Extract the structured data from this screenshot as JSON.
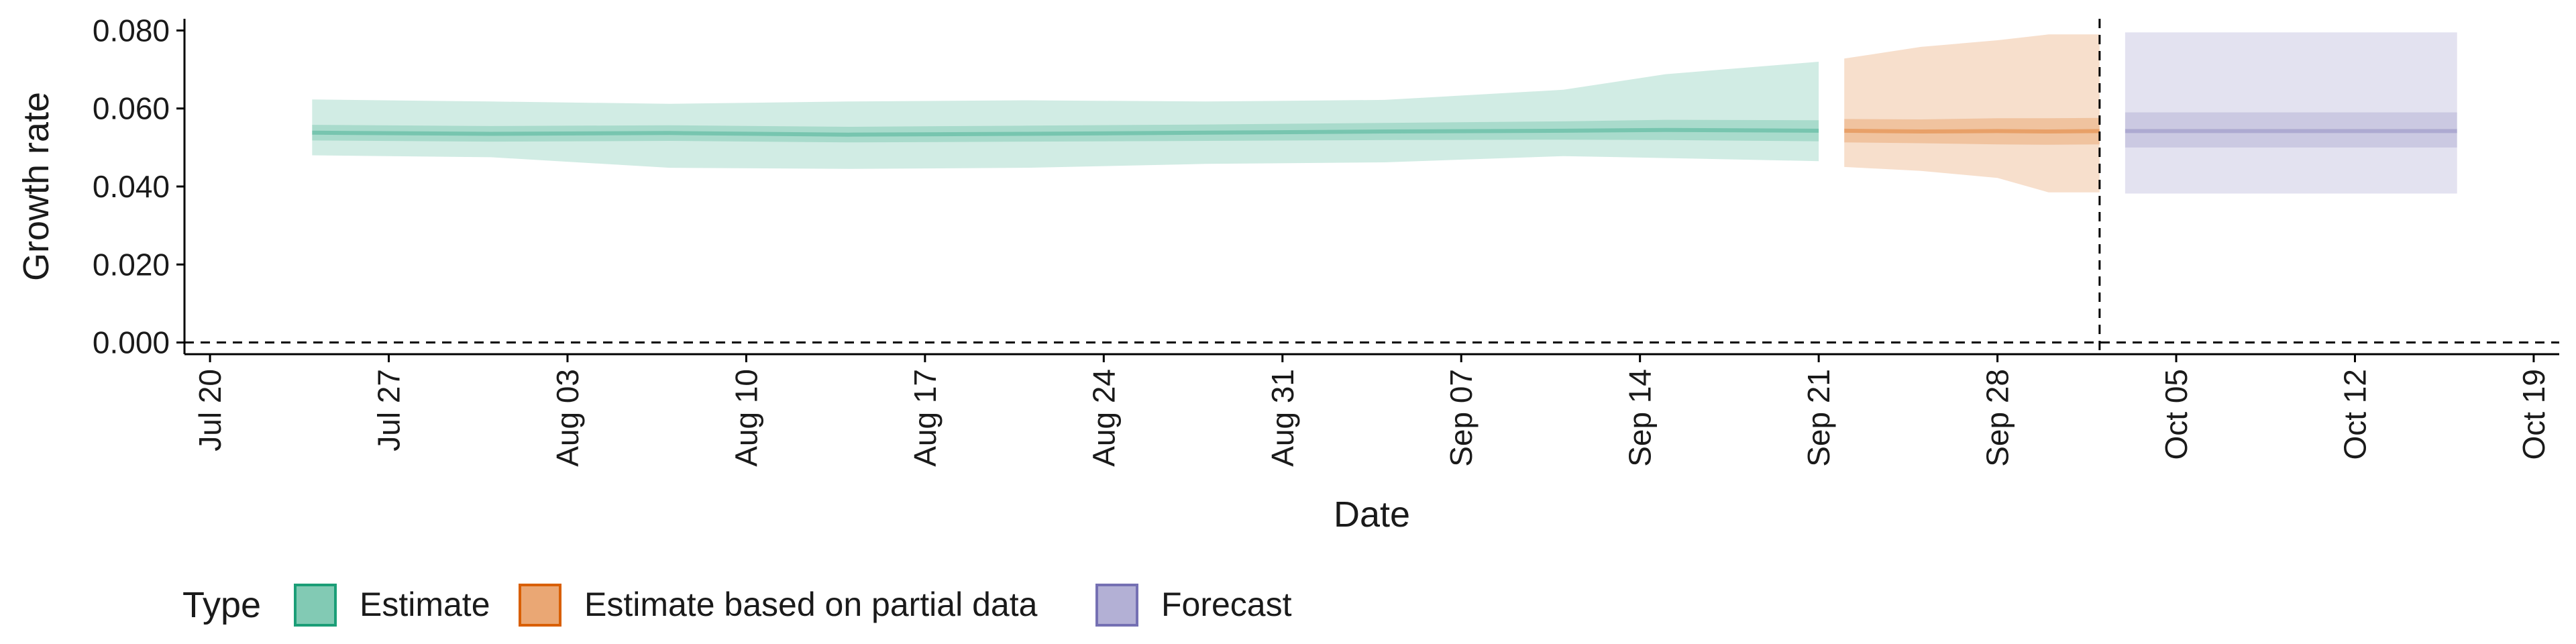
{
  "chart_data": {
    "type": "area",
    "title": "",
    "xlabel": "Date",
    "ylabel": "Growth rate",
    "x_type": "date",
    "xlim": [
      "2020-07-19",
      "2020-10-20"
    ],
    "ylim": [
      -0.003,
      0.083
    ],
    "x_ticks": [
      {
        "date": "2020-07-20",
        "label": "Jul 20"
      },
      {
        "date": "2020-07-27",
        "label": "Jul 27"
      },
      {
        "date": "2020-08-03",
        "label": "Aug 03"
      },
      {
        "date": "2020-08-10",
        "label": "Aug 10"
      },
      {
        "date": "2020-08-17",
        "label": "Aug 17"
      },
      {
        "date": "2020-08-24",
        "label": "Aug 24"
      },
      {
        "date": "2020-08-31",
        "label": "Aug 31"
      },
      {
        "date": "2020-09-07",
        "label": "Sep 07"
      },
      {
        "date": "2020-09-14",
        "label": "Sep 14"
      },
      {
        "date": "2020-09-21",
        "label": "Sep 21"
      },
      {
        "date": "2020-09-28",
        "label": "Sep 28"
      },
      {
        "date": "2020-10-05",
        "label": "Oct 05"
      },
      {
        "date": "2020-10-12",
        "label": "Oct 12"
      },
      {
        "date": "2020-10-19",
        "label": "Oct 19"
      }
    ],
    "y_ticks": [
      {
        "value": 0.0,
        "label": "0.000"
      },
      {
        "value": 0.02,
        "label": "0.020"
      },
      {
        "value": 0.04,
        "label": "0.040"
      },
      {
        "value": 0.06,
        "label": "0.060"
      },
      {
        "value": 0.08,
        "label": "0.080"
      }
    ],
    "hline": 0,
    "vline_date": "2020-10-02",
    "grid": false,
    "legend": {
      "title": "Type",
      "position": "bottom-left"
    },
    "series": [
      {
        "name": "Estimate",
        "color": "#1b9e77",
        "points": [
          {
            "x": "2020-07-24",
            "median": 0.0538,
            "lower_50": 0.0518,
            "upper_50": 0.0558,
            "lower_90": 0.048,
            "upper_90": 0.0623
          },
          {
            "x": "2020-07-31",
            "median": 0.0535,
            "lower_50": 0.0515,
            "upper_50": 0.0555,
            "lower_90": 0.0475,
            "upper_90": 0.0618
          },
          {
            "x": "2020-08-07",
            "median": 0.0537,
            "lower_50": 0.0517,
            "upper_50": 0.0557,
            "lower_90": 0.0448,
            "upper_90": 0.0612
          },
          {
            "x": "2020-08-14",
            "median": 0.0533,
            "lower_50": 0.0513,
            "upper_50": 0.0553,
            "lower_90": 0.0445,
            "upper_90": 0.0618
          },
          {
            "x": "2020-08-21",
            "median": 0.0535,
            "lower_50": 0.0515,
            "upper_50": 0.0556,
            "lower_90": 0.0448,
            "upper_90": 0.0621
          },
          {
            "x": "2020-08-28",
            "median": 0.0538,
            "lower_50": 0.0517,
            "upper_50": 0.0559,
            "lower_90": 0.0458,
            "upper_90": 0.0618
          },
          {
            "x": "2020-09-04",
            "median": 0.0541,
            "lower_50": 0.0519,
            "upper_50": 0.0563,
            "lower_90": 0.0462,
            "upper_90": 0.0622
          },
          {
            "x": "2020-09-11",
            "median": 0.0543,
            "lower_50": 0.052,
            "upper_50": 0.0567,
            "lower_90": 0.0478,
            "upper_90": 0.0648
          },
          {
            "x": "2020-09-15",
            "median": 0.0545,
            "lower_50": 0.0519,
            "upper_50": 0.0571,
            "lower_90": 0.0473,
            "upper_90": 0.0688
          },
          {
            "x": "2020-09-21",
            "median": 0.0543,
            "lower_50": 0.0516,
            "upper_50": 0.057,
            "lower_90": 0.0465,
            "upper_90": 0.072
          }
        ]
      },
      {
        "name": "Estimate based on partial data",
        "color": "#d95f02",
        "points": [
          {
            "x": "2020-09-22",
            "median": 0.0543,
            "lower_50": 0.0513,
            "upper_50": 0.0573,
            "lower_90": 0.045,
            "upper_90": 0.0728
          },
          {
            "x": "2020-09-25",
            "median": 0.0541,
            "lower_50": 0.0511,
            "upper_50": 0.0572,
            "lower_90": 0.044,
            "upper_90": 0.0758
          },
          {
            "x": "2020-09-28",
            "median": 0.0542,
            "lower_50": 0.0508,
            "upper_50": 0.0575,
            "lower_90": 0.0422,
            "upper_90": 0.0775
          },
          {
            "x": "2020-09-30",
            "median": 0.0541,
            "lower_50": 0.0507,
            "upper_50": 0.0575,
            "lower_90": 0.0385,
            "upper_90": 0.079
          },
          {
            "x": "2020-10-02",
            "median": 0.0542,
            "lower_50": 0.0508,
            "upper_50": 0.0576,
            "lower_90": 0.0385,
            "upper_90": 0.079
          }
        ]
      },
      {
        "name": "Forecast",
        "color": "#7570b3",
        "points": [
          {
            "x": "2020-10-03",
            "median": 0.0542,
            "lower_50": 0.05,
            "upper_50": 0.059,
            "lower_90": 0.0382,
            "upper_90": 0.0795
          },
          {
            "x": "2020-10-16",
            "median": 0.0542,
            "lower_50": 0.05,
            "upper_50": 0.059,
            "lower_90": 0.0382,
            "upper_90": 0.0795
          }
        ]
      }
    ]
  }
}
